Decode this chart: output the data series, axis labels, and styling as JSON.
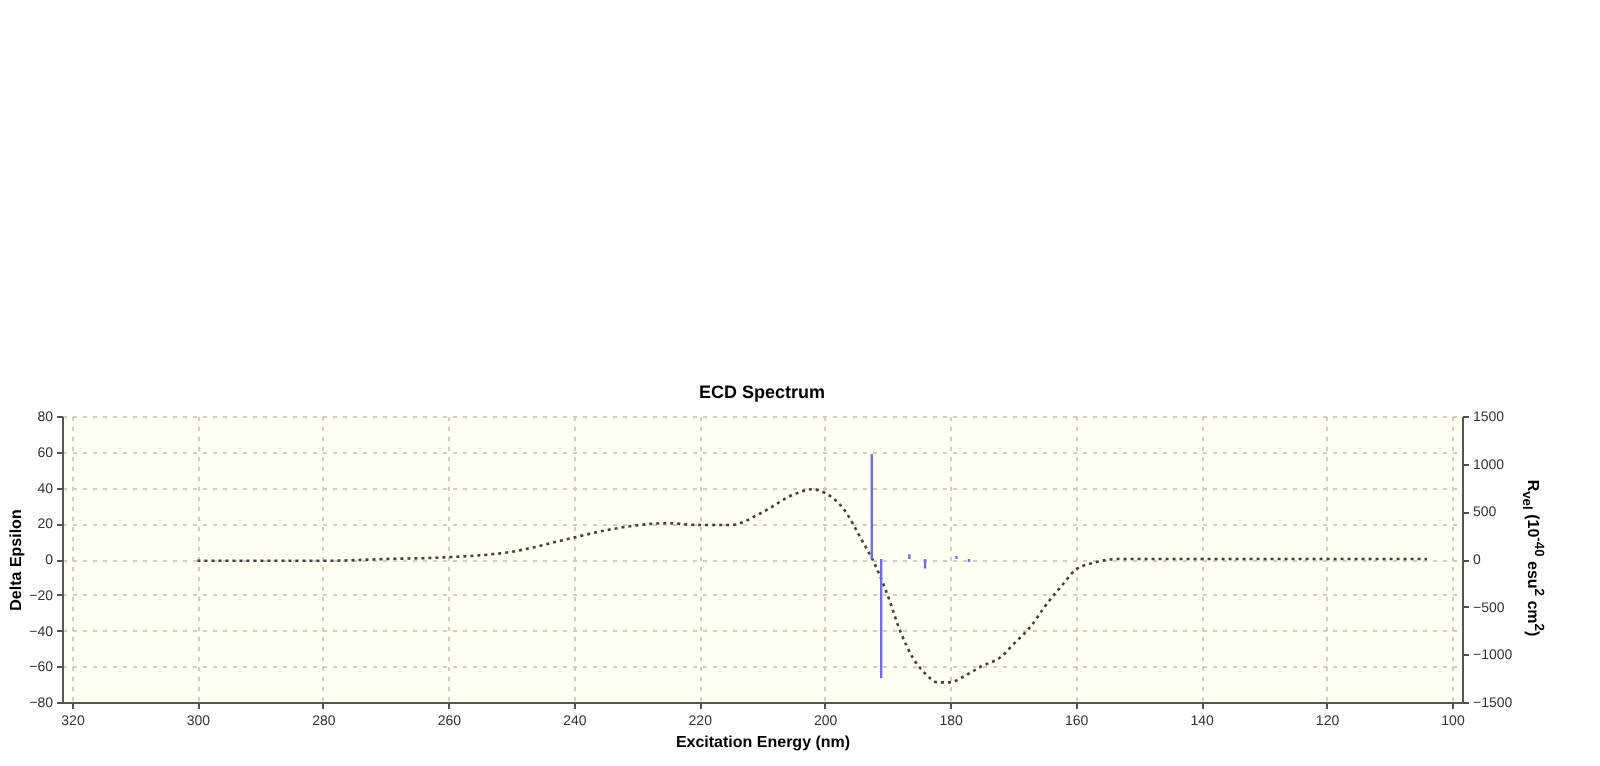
{
  "chart_data": {
    "type": "line",
    "title": "ECD Spectrum",
    "xlabel": "Excitation Energy (nm)",
    "ylabel": "Delta Epsilon",
    "y2label": "R$_{vel}$ (10$^{-40}$ esu$^{2}$ cm$^{2}$)",
    "xlim": [
      320,
      100
    ],
    "xticks": [
      320,
      300,
      280,
      260,
      240,
      220,
      200,
      180,
      160,
      140,
      120,
      100
    ],
    "ylim": [
      -80,
      80
    ],
    "yticks": [
      -80,
      -60,
      -40,
      -20,
      0,
      20,
      40,
      60,
      80
    ],
    "y2lim": [
      -1500,
      1500
    ],
    "y2ticks": [
      -1500,
      -1000,
      -500,
      0,
      500,
      1000,
      1500
    ],
    "grid": true,
    "line_style": "dotted",
    "series": [
      {
        "color": "#404040",
        "x": [
          300,
          280,
          270,
          260,
          250,
          240,
          235,
          225,
          220,
          215,
          210,
          205,
          202,
          200,
          197,
          194,
          192,
          190,
          188,
          186,
          184,
          182,
          180,
          178,
          175,
          172,
          170,
          167,
          165,
          162,
          160,
          157,
          153,
          150,
          130,
          104
        ],
        "values": [
          -1,
          -1,
          0,
          1,
          4,
          12,
          16,
          20,
          19,
          19,
          26,
          36,
          39,
          37,
          28,
          10,
          -3,
          -20,
          -40,
          -55,
          -64,
          -69,
          -69,
          -66,
          -60,
          -55,
          -48,
          -37,
          -27,
          -14,
          -6,
          -2,
          0,
          0,
          0,
          0
        ]
      },
      {
        "type": "bar",
        "axis": "y2",
        "color": "#6b6bff",
        "x": [
          192.5,
          191,
          186.5,
          184,
          179,
          177
        ],
        "values": [
          1100,
          -1250,
          50,
          -100,
          30,
          -30
        ]
      }
    ]
  }
}
